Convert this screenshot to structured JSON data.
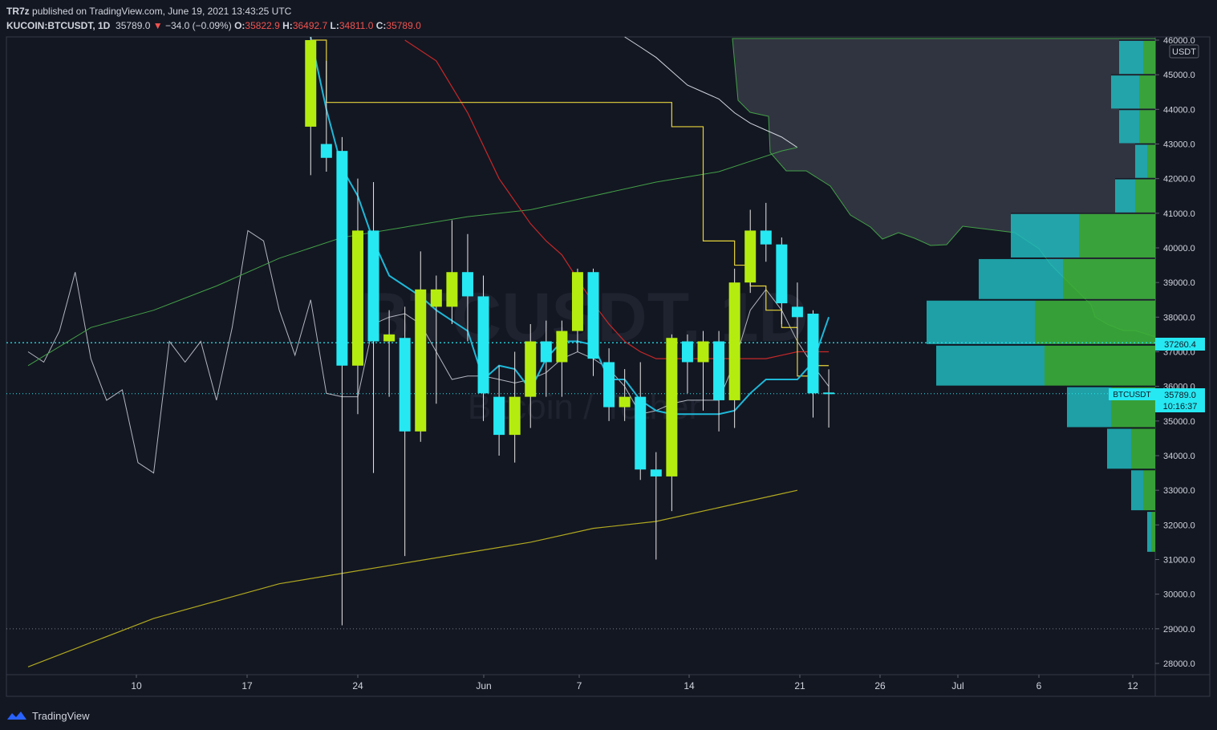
{
  "header": {
    "author": "TR7z",
    "published": "published on TradingView.com, June 19, 2021 13:43:25 UTC",
    "symbol": "KUCOIN:BTCUSDT, 1D",
    "last": "35789.0",
    "change": "−34.0 (−0.09%)",
    "o_label": "O:",
    "o": "35822.9",
    "h_label": "H:",
    "h": "36492.7",
    "l_label": "L:",
    "l": "34811.0",
    "c_label": "C:",
    "c": "35789.0"
  },
  "axis": {
    "currency": "USDT",
    "y_ticks": [
      "46000.0",
      "45000.0",
      "44000.0",
      "43000.0",
      "42000.0",
      "41000.0",
      "40000.0",
      "39000.0",
      "38000.0",
      "37000.0",
      "36000.0",
      "35000.0",
      "34000.0",
      "33000.0",
      "32000.0",
      "31000.0",
      "30000.0",
      "29000.0",
      "28000.0"
    ],
    "x_ticks": [
      "10",
      "17",
      "24",
      "Jun",
      "7",
      "14",
      "21",
      "26",
      "Jul",
      "6",
      "12"
    ],
    "price_label_1": "37260.4",
    "price_label_2_name": "BTCUSDT",
    "price_label_2_value": "35789.0",
    "price_label_2_time": "10:16:37"
  },
  "watermark": {
    "symbol": "BTCUSDT, 1D",
    "name": "Bitcoin / Tether"
  },
  "footer": {
    "brand": "TradingView"
  },
  "colors": {
    "bg": "#131722",
    "cyan": "#26e8f2",
    "lime": "#b5ec0f",
    "line_blue": "#1fb8d8",
    "red": "#c62828",
    "yellow": "#e6d33b",
    "green": "#43a047",
    "white": "#c8c8c8"
  },
  "chart_data": {
    "type": "candlestick",
    "ylim": [
      27700,
      46100
    ],
    "candles": [
      {
        "x": 18,
        "o": 43500,
        "h": 47000,
        "l": 42100,
        "c": 46000
      },
      {
        "x": 19,
        "o": 43000,
        "h": 45400,
        "l": 42200,
        "c": 42600
      },
      {
        "x": 20,
        "o": 42800,
        "h": 43200,
        "l": 29100,
        "c": 36600
      },
      {
        "x": 21,
        "o": 36600,
        "h": 42000,
        "l": 35200,
        "c": 40500
      },
      {
        "x": 22,
        "o": 40500,
        "h": 41900,
        "l": 33500,
        "c": 37300
      },
      {
        "x": 23,
        "o": 37300,
        "h": 38200,
        "l": 35700,
        "c": 37500
      },
      {
        "x": 24,
        "o": 37400,
        "h": 38300,
        "l": 31100,
        "c": 34700
      },
      {
        "x": 25,
        "o": 34700,
        "h": 39900,
        "l": 34400,
        "c": 38800
      },
      {
        "x": 26,
        "o": 38300,
        "h": 39200,
        "l": 35500,
        "c": 38800
      },
      {
        "x": 27,
        "o": 38300,
        "h": 40800,
        "l": 37800,
        "c": 39300
      },
      {
        "x": 28,
        "o": 39300,
        "h": 40400,
        "l": 37300,
        "c": 38600
      },
      {
        "x": 29,
        "o": 38600,
        "h": 39200,
        "l": 35000,
        "c": 35800
      },
      {
        "x": 30,
        "o": 35700,
        "h": 36600,
        "l": 34000,
        "c": 34600
      },
      {
        "x": 31,
        "o": 34600,
        "h": 37000,
        "l": 33800,
        "c": 35700
      },
      {
        "x": 32,
        "o": 35700,
        "h": 37800,
        "l": 34800,
        "c": 37300
      },
      {
        "x": 33,
        "o": 37300,
        "h": 37900,
        "l": 35700,
        "c": 36700
      },
      {
        "x": 34,
        "o": 36700,
        "h": 37900,
        "l": 35700,
        "c": 37600
      },
      {
        "x": 35,
        "o": 37600,
        "h": 39400,
        "l": 37000,
        "c": 39300
      },
      {
        "x": 36,
        "o": 39300,
        "h": 39400,
        "l": 36300,
        "c": 36800
      },
      {
        "x": 37,
        "o": 36700,
        "h": 37100,
        "l": 35000,
        "c": 35400
      },
      {
        "x": 38,
        "o": 35400,
        "h": 36500,
        "l": 35000,
        "c": 35700
      },
      {
        "x": 39,
        "o": 35700,
        "h": 36700,
        "l": 33300,
        "c": 33600
      },
      {
        "x": 40,
        "o": 33600,
        "h": 34100,
        "l": 31000,
        "c": 33400
      },
      {
        "x": 41,
        "o": 33400,
        "h": 37500,
        "l": 32400,
        "c": 37400
      },
      {
        "x": 42,
        "o": 37300,
        "h": 37500,
        "l": 35800,
        "c": 36700
      },
      {
        "x": 43,
        "o": 36700,
        "h": 37600,
        "l": 35300,
        "c": 37300
      },
      {
        "x": 44,
        "o": 37300,
        "h": 37600,
        "l": 34700,
        "c": 35600
      },
      {
        "x": 45,
        "o": 35600,
        "h": 39400,
        "l": 34800,
        "c": 39000
      },
      {
        "x": 46,
        "o": 39000,
        "h": 41100,
        "l": 38700,
        "c": 40500
      },
      {
        "x": 47,
        "o": 40500,
        "h": 41300,
        "l": 39600,
        "c": 40100
      },
      {
        "x": 48,
        "o": 40100,
        "h": 40300,
        "l": 37800,
        "c": 38400
      },
      {
        "x": 49,
        "o": 38300,
        "h": 39000,
        "l": 37400,
        "c": 38000
      },
      {
        "x": 50,
        "o": 38100,
        "h": 38200,
        "l": 35100,
        "c": 35800
      },
      {
        "x": 51,
        "o": 35822.9,
        "h": 36492.7,
        "l": 34811.0,
        "c": 35789.0
      }
    ],
    "lines": {
      "blue_fast": [
        [
          18,
          46500
        ],
        [
          19,
          44000
        ],
        [
          20,
          42300
        ],
        [
          21,
          41500
        ],
        [
          22,
          40200
        ],
        [
          23,
          39200
        ],
        [
          24,
          38900
        ],
        [
          25,
          38600
        ],
        [
          26,
          38200
        ],
        [
          27,
          37900
        ],
        [
          28,
          37600
        ],
        [
          29,
          36200
        ],
        [
          30,
          36600
        ],
        [
          31,
          36500
        ],
        [
          32,
          35900
        ],
        [
          33,
          36800
        ],
        [
          34,
          37300
        ],
        [
          35,
          37300
        ],
        [
          36,
          37200
        ],
        [
          37,
          36200
        ],
        [
          38,
          36200
        ],
        [
          39,
          35600
        ],
        [
          40,
          35300
        ],
        [
          41,
          35200
        ],
        [
          42,
          35200
        ],
        [
          43,
          35200
        ],
        [
          44,
          35200
        ],
        [
          45,
          35300
        ],
        [
          46,
          35800
        ],
        [
          47,
          36200
        ],
        [
          48,
          36200
        ],
        [
          49,
          36200
        ],
        [
          50,
          36700
        ],
        [
          51,
          38000
        ]
      ],
      "white_fast": [
        [
          0,
          37000
        ],
        [
          1,
          36700
        ],
        [
          2,
          37600
        ],
        [
          3,
          39300
        ],
        [
          4,
          36800
        ],
        [
          5,
          35600
        ],
        [
          6,
          35900
        ],
        [
          7,
          33800
        ],
        [
          8,
          33500
        ],
        [
          9,
          37300
        ],
        [
          10,
          36700
        ],
        [
          11,
          37300
        ],
        [
          12,
          35600
        ],
        [
          13,
          37700
        ],
        [
          14,
          40500
        ],
        [
          15,
          40200
        ],
        [
          16,
          38200
        ],
        [
          17,
          36900
        ],
        [
          18,
          38500
        ],
        [
          19,
          35800
        ],
        [
          20,
          35700
        ],
        [
          21,
          35700
        ],
        [
          22,
          37800
        ],
        [
          23,
          38000
        ],
        [
          24,
          38100
        ],
        [
          25,
          37800
        ],
        [
          26,
          37000
        ],
        [
          27,
          36200
        ],
        [
          28,
          36300
        ],
        [
          29,
          36300
        ],
        [
          30,
          36200
        ],
        [
          31,
          36100
        ],
        [
          32,
          36200
        ],
        [
          33,
          36400
        ],
        [
          34,
          36800
        ],
        [
          35,
          37000
        ],
        [
          36,
          36800
        ],
        [
          37,
          36500
        ],
        [
          38,
          36000
        ],
        [
          39,
          35200
        ],
        [
          40,
          35300
        ],
        [
          41,
          35500
        ],
        [
          42,
          35600
        ],
        [
          43,
          35600
        ],
        [
          44,
          35600
        ],
        [
          45,
          36700
        ],
        [
          46,
          38200
        ],
        [
          47,
          38800
        ],
        [
          48,
          38200
        ],
        [
          49,
          37300
        ],
        [
          50,
          36600
        ],
        [
          51,
          36000
        ]
      ],
      "yellow_step": [
        [
          18,
          46000
        ],
        [
          19,
          44200
        ],
        [
          20,
          44200
        ],
        [
          21,
          44200
        ],
        [
          22,
          44200
        ],
        [
          23,
          44200
        ],
        [
          24,
          44200
        ],
        [
          25,
          44200
        ],
        [
          26,
          44200
        ],
        [
          27,
          44200
        ],
        [
          28,
          44200
        ],
        [
          29,
          44200
        ],
        [
          30,
          44200
        ],
        [
          31,
          44200
        ],
        [
          32,
          44200
        ],
        [
          33,
          44200
        ],
        [
          34,
          44200
        ],
        [
          35,
          44200
        ],
        [
          36,
          44200
        ],
        [
          37,
          44200
        ],
        [
          38,
          44200
        ],
        [
          39,
          44200
        ],
        [
          40,
          44200
        ],
        [
          41,
          43500
        ],
        [
          42,
          43500
        ],
        [
          43,
          40200
        ],
        [
          44,
          40200
        ],
        [
          45,
          39500
        ],
        [
          46,
          38900
        ],
        [
          47,
          38200
        ],
        [
          48,
          37700
        ],
        [
          49,
          36300
        ],
        [
          50,
          36600
        ],
        [
          51,
          36600
        ]
      ],
      "red_ma": [
        [
          24,
          46000
        ],
        [
          26,
          45400
        ],
        [
          28,
          43900
        ],
        [
          30,
          42000
        ],
        [
          32,
          40700
        ],
        [
          33,
          40200
        ],
        [
          34,
          39800
        ],
        [
          35,
          39100
        ],
        [
          36,
          38400
        ],
        [
          37,
          37800
        ],
        [
          38,
          37300
        ],
        [
          39,
          37000
        ],
        [
          40,
          36800
        ],
        [
          41,
          36800
        ],
        [
          42,
          36800
        ],
        [
          43,
          36800
        ],
        [
          44,
          36800
        ],
        [
          45,
          36800
        ],
        [
          46,
          36800
        ],
        [
          47,
          36800
        ],
        [
          48,
          36900
        ],
        [
          49,
          37000
        ],
        [
          50,
          37000
        ],
        [
          51,
          37000
        ]
      ],
      "white_ma": [
        [
          38,
          46100
        ],
        [
          39,
          45800
        ],
        [
          40,
          45500
        ],
        [
          41,
          45100
        ],
        [
          42,
          44700
        ],
        [
          43,
          44500
        ],
        [
          44,
          44300
        ],
        [
          45,
          43900
        ],
        [
          46,
          43600
        ],
        [
          47,
          43400
        ],
        [
          48,
          43200
        ],
        [
          49,
          42900
        ]
      ],
      "green_ma": [
        [
          0,
          36600
        ],
        [
          4,
          37700
        ],
        [
          8,
          38200
        ],
        [
          12,
          38900
        ],
        [
          16,
          39700
        ],
        [
          20,
          40300
        ],
        [
          24,
          40600
        ],
        [
          28,
          40900
        ],
        [
          32,
          41100
        ],
        [
          36,
          41500
        ],
        [
          40,
          41900
        ],
        [
          44,
          42200
        ],
        [
          46,
          42500
        ],
        [
          48,
          42800
        ],
        [
          49,
          42900
        ]
      ],
      "olive_ma": [
        [
          0,
          27900
        ],
        [
          4,
          28600
        ],
        [
          8,
          29300
        ],
        [
          12,
          29800
        ],
        [
          16,
          30300
        ],
        [
          20,
          30600
        ],
        [
          24,
          30900
        ],
        [
          28,
          31200
        ],
        [
          32,
          31500
        ],
        [
          36,
          31900
        ],
        [
          40,
          32100
        ],
        [
          44,
          32500
        ],
        [
          48,
          32900
        ],
        [
          49,
          33000
        ]
      ]
    },
    "volume_profile": [
      {
        "low": 45000,
        "high": 46000,
        "up": 30,
        "down": 15
      },
      {
        "low": 44000,
        "high": 45000,
        "up": 35,
        "down": 20
      },
      {
        "low": 43000,
        "high": 44000,
        "up": 25,
        "down": 20
      },
      {
        "low": 42000,
        "high": 43000,
        "up": 15,
        "down": 10
      },
      {
        "low": 41000,
        "high": 42000,
        "up": 25,
        "down": 25
      },
      {
        "low": 39700,
        "high": 41000,
        "up": 85,
        "down": 95
      },
      {
        "low": 38500,
        "high": 39700,
        "up": 105,
        "down": 115
      },
      {
        "low": 37200,
        "high": 38500,
        "up": 135,
        "down": 150
      },
      {
        "low": 36000,
        "high": 37200,
        "up": 135,
        "down": 138
      },
      {
        "low": 34800,
        "high": 36000,
        "up": 55,
        "down": 55
      },
      {
        "low": 33600,
        "high": 34800,
        "up": 30,
        "down": 30
      },
      {
        "low": 32400,
        "high": 33600,
        "up": 15,
        "down": 15
      },
      {
        "low": 31200,
        "high": 32400,
        "up": 5,
        "down": 5
      }
    ],
    "levels": [
      37260.4,
      35789.0,
      29000
    ]
  }
}
